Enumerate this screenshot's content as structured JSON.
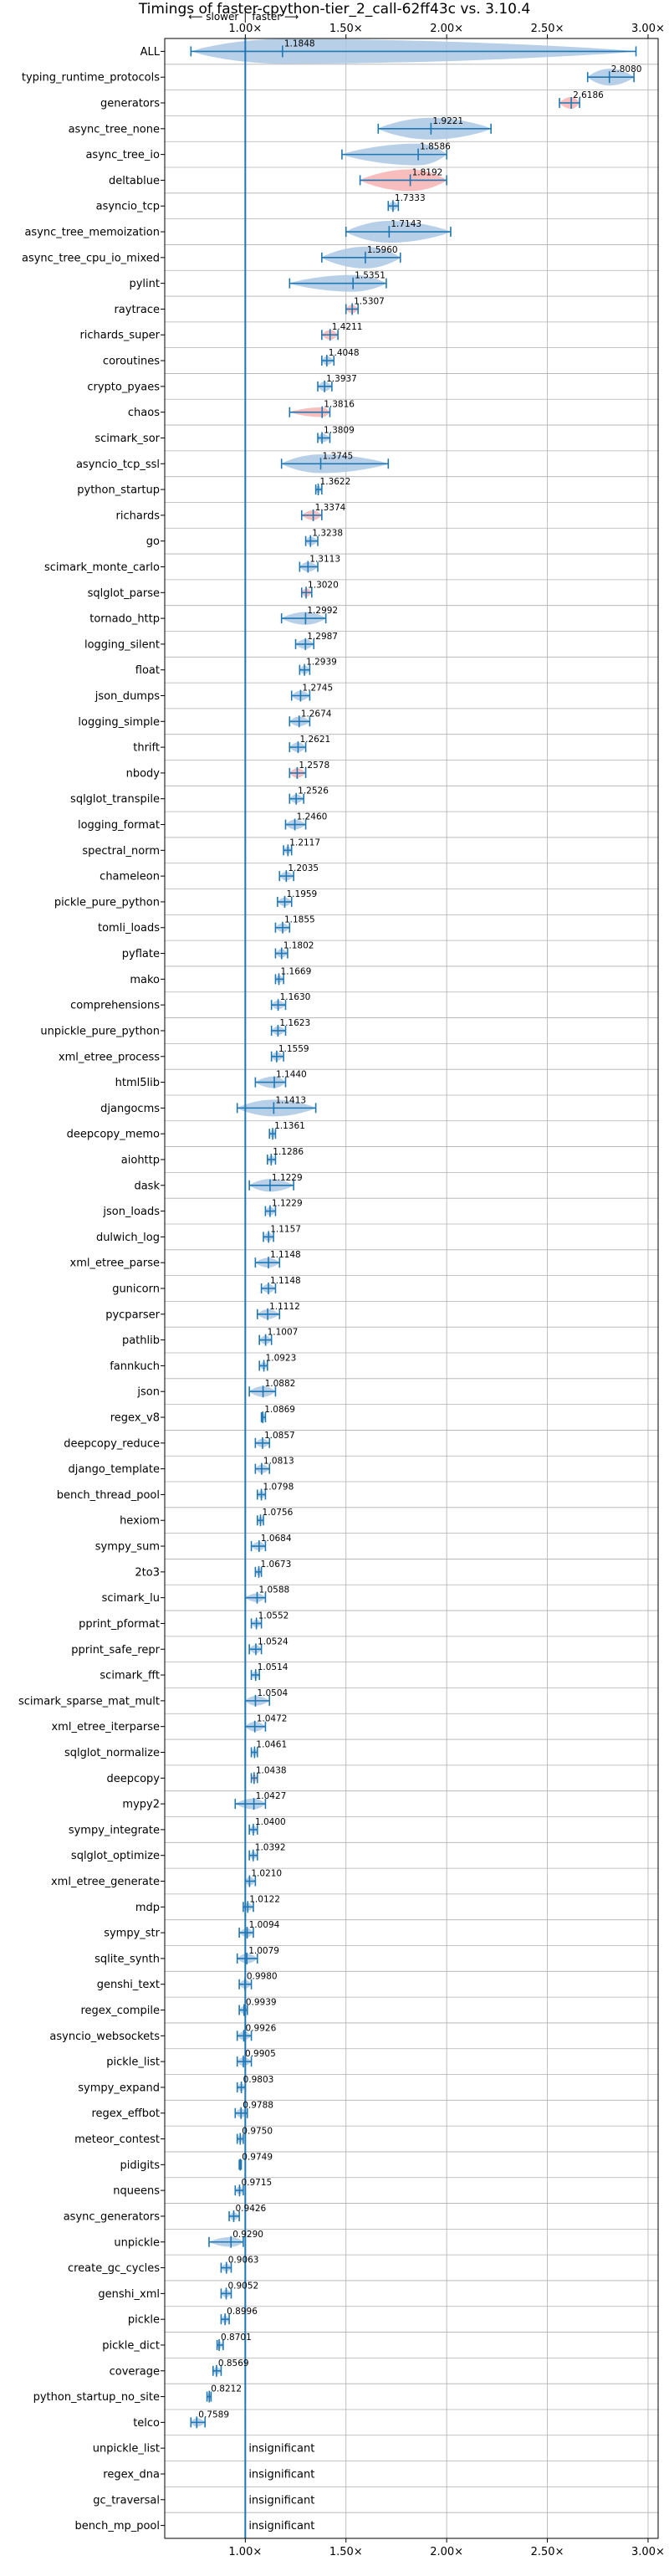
{
  "chart_data": {
    "type": "violin",
    "title": "Timings of faster-cpython-tier_2_call-62ff43c vs. 3.10.4",
    "direction_labels": {
      "slower": "⟵ slower",
      "separator": "|",
      "faster": "faster ⟶"
    },
    "xlim": [
      0.6,
      3.05
    ],
    "xticks": [
      1.0,
      1.5,
      2.0,
      2.5,
      3.0
    ],
    "xtick_labels": [
      "1.00×",
      "1.50×",
      "2.00×",
      "2.50×",
      "3.00×"
    ],
    "reference_line": 1.0,
    "grid": true,
    "colors": {
      "faster": "#1f77b4",
      "slower": "#ff7f7f",
      "violin_faster": "#aac8e4",
      "violin_slower": "#f7b2b2"
    },
    "insignificant_label": "insignificant",
    "benchmarks": [
      {
        "name": "ALL",
        "value": 1.1848,
        "min": 0.73,
        "max": 2.94,
        "spread": 0.4
      },
      {
        "name": "typing_runtime_protocols",
        "value": 2.808,
        "min": 2.7,
        "max": 2.93,
        "spread": 0.1
      },
      {
        "name": "generators",
        "value": 2.6186,
        "min": 2.56,
        "max": 2.66,
        "spread": 0.05,
        "slower": true
      },
      {
        "name": "async_tree_none",
        "value": 1.9221,
        "min": 1.66,
        "max": 2.22,
        "spread": 0.15
      },
      {
        "name": "async_tree_io",
        "value": 1.8586,
        "min": 1.48,
        "max": 2.0,
        "spread": 0.15
      },
      {
        "name": "deltablue",
        "value": 1.8192,
        "min": 1.57,
        "max": 2.0,
        "spread": 0.15,
        "slower": true
      },
      {
        "name": "asyncio_tcp",
        "value": 1.7333,
        "min": 1.71,
        "max": 1.76,
        "spread": 0.02
      },
      {
        "name": "async_tree_memoization",
        "value": 1.7143,
        "min": 1.5,
        "max": 2.02,
        "spread": 0.15
      },
      {
        "name": "async_tree_cpu_io_mixed",
        "value": 1.596,
        "min": 1.38,
        "max": 1.77,
        "spread": 0.15
      },
      {
        "name": "pylint",
        "value": 1.5351,
        "min": 1.22,
        "max": 1.7,
        "spread": 0.1
      },
      {
        "name": "raytrace",
        "value": 1.5307,
        "min": 1.5,
        "max": 1.56,
        "spread": 0.02,
        "slower": true
      },
      {
        "name": "richards_super",
        "value": 1.4211,
        "min": 1.38,
        "max": 1.46,
        "spread": 0.03,
        "slower": true
      },
      {
        "name": "coroutines",
        "value": 1.4048,
        "min": 1.38,
        "max": 1.44,
        "spread": 0.02
      },
      {
        "name": "crypto_pyaes",
        "value": 1.3937,
        "min": 1.36,
        "max": 1.43,
        "spread": 0.03
      },
      {
        "name": "chaos",
        "value": 1.3816,
        "min": 1.22,
        "max": 1.42,
        "spread": 0.03,
        "slower": true
      },
      {
        "name": "scimark_sor",
        "value": 1.3809,
        "min": 1.36,
        "max": 1.42,
        "spread": 0.02
      },
      {
        "name": "asyncio_tcp_ssl",
        "value": 1.3745,
        "min": 1.18,
        "max": 1.71,
        "spread": 0.12
      },
      {
        "name": "python_startup",
        "value": 1.3622,
        "min": 1.35,
        "max": 1.38,
        "spread": 0.01
      },
      {
        "name": "richards",
        "value": 1.3374,
        "min": 1.28,
        "max": 1.38,
        "spread": 0.03,
        "slower": true
      },
      {
        "name": "go",
        "value": 1.3238,
        "min": 1.3,
        "max": 1.36,
        "spread": 0.02
      },
      {
        "name": "scimark_monte_carlo",
        "value": 1.3113,
        "min": 1.27,
        "max": 1.36,
        "spread": 0.03
      },
      {
        "name": "sqlglot_parse",
        "value": 1.302,
        "min": 1.28,
        "max": 1.33,
        "spread": 0.02,
        "slower": true
      },
      {
        "name": "tornado_http",
        "value": 1.2992,
        "min": 1.18,
        "max": 1.4,
        "spread": 0.06
      },
      {
        "name": "logging_silent",
        "value": 1.2987,
        "min": 1.25,
        "max": 1.34,
        "spread": 0.03
      },
      {
        "name": "float",
        "value": 1.2939,
        "min": 1.27,
        "max": 1.32,
        "spread": 0.02
      },
      {
        "name": "json_dumps",
        "value": 1.2745,
        "min": 1.23,
        "max": 1.32,
        "spread": 0.03
      },
      {
        "name": "logging_simple",
        "value": 1.2674,
        "min": 1.22,
        "max": 1.32,
        "spread": 0.03
      },
      {
        "name": "thrift",
        "value": 1.2621,
        "min": 1.22,
        "max": 1.3,
        "spread": 0.03
      },
      {
        "name": "nbody",
        "value": 1.2578,
        "min": 1.22,
        "max": 1.3,
        "spread": 0.03,
        "slower": true
      },
      {
        "name": "sqlglot_transpile",
        "value": 1.2526,
        "min": 1.22,
        "max": 1.29,
        "spread": 0.02
      },
      {
        "name": "logging_format",
        "value": 1.246,
        "min": 1.2,
        "max": 1.3,
        "spread": 0.03
      },
      {
        "name": "spectral_norm",
        "value": 1.2117,
        "min": 1.19,
        "max": 1.23,
        "spread": 0.01
      },
      {
        "name": "chameleon",
        "value": 1.2035,
        "min": 1.17,
        "max": 1.24,
        "spread": 0.02
      },
      {
        "name": "pickle_pure_python",
        "value": 1.1959,
        "min": 1.16,
        "max": 1.23,
        "spread": 0.02
      },
      {
        "name": "tomli_loads",
        "value": 1.1855,
        "min": 1.15,
        "max": 1.22,
        "spread": 0.02
      },
      {
        "name": "pyflate",
        "value": 1.1802,
        "min": 1.15,
        "max": 1.21,
        "spread": 0.02
      },
      {
        "name": "mako",
        "value": 1.1669,
        "min": 1.15,
        "max": 1.19,
        "spread": 0.01
      },
      {
        "name": "comprehensions",
        "value": 1.163,
        "min": 1.13,
        "max": 1.2,
        "spread": 0.02
      },
      {
        "name": "unpickle_pure_python",
        "value": 1.1623,
        "min": 1.13,
        "max": 1.2,
        "spread": 0.02
      },
      {
        "name": "xml_etree_process",
        "value": 1.1559,
        "min": 1.13,
        "max": 1.19,
        "spread": 0.02
      },
      {
        "name": "html5lib",
        "value": 1.144,
        "min": 1.05,
        "max": 1.2,
        "spread": 0.05
      },
      {
        "name": "djangocms",
        "value": 1.1413,
        "min": 0.96,
        "max": 1.35,
        "spread": 0.1
      },
      {
        "name": "deepcopy_memo",
        "value": 1.1361,
        "min": 1.12,
        "max": 1.15,
        "spread": 0.01
      },
      {
        "name": "aiohttp",
        "value": 1.1286,
        "min": 1.11,
        "max": 1.15,
        "spread": 0.01
      },
      {
        "name": "dask",
        "value": 1.1229,
        "min": 1.02,
        "max": 1.24,
        "spread": 0.06
      },
      {
        "name": "json_loads",
        "value": 1.1229,
        "min": 1.1,
        "max": 1.15,
        "spread": 0.02
      },
      {
        "name": "dulwich_log",
        "value": 1.1157,
        "min": 1.09,
        "max": 1.14,
        "spread": 0.02
      },
      {
        "name": "xml_etree_parse",
        "value": 1.1148,
        "min": 1.05,
        "max": 1.17,
        "spread": 0.03
      },
      {
        "name": "gunicorn",
        "value": 1.1148,
        "min": 1.08,
        "max": 1.15,
        "spread": 0.02
      },
      {
        "name": "pycparser",
        "value": 1.1112,
        "min": 1.06,
        "max": 1.17,
        "spread": 0.03
      },
      {
        "name": "pathlib",
        "value": 1.1007,
        "min": 1.07,
        "max": 1.13,
        "spread": 0.02
      },
      {
        "name": "fannkuch",
        "value": 1.0923,
        "min": 1.07,
        "max": 1.11,
        "spread": 0.01
      },
      {
        "name": "json",
        "value": 1.0882,
        "min": 1.02,
        "max": 1.15,
        "spread": 0.04
      },
      {
        "name": "regex_v8",
        "value": 1.0869,
        "min": 1.08,
        "max": 1.1,
        "spread": 0.01
      },
      {
        "name": "deepcopy_reduce",
        "value": 1.0857,
        "min": 1.05,
        "max": 1.12,
        "spread": 0.02
      },
      {
        "name": "django_template",
        "value": 1.0813,
        "min": 1.05,
        "max": 1.12,
        "spread": 0.02
      },
      {
        "name": "bench_thread_pool",
        "value": 1.0798,
        "min": 1.06,
        "max": 1.1,
        "spread": 0.01
      },
      {
        "name": "hexiom",
        "value": 1.0756,
        "min": 1.06,
        "max": 1.09,
        "spread": 0.01
      },
      {
        "name": "sympy_sum",
        "value": 1.0684,
        "min": 1.03,
        "max": 1.1,
        "spread": 0.02
      },
      {
        "name": "2to3",
        "value": 1.0673,
        "min": 1.05,
        "max": 1.08,
        "spread": 0.01
      },
      {
        "name": "scimark_lu",
        "value": 1.0588,
        "min": 1.0,
        "max": 1.1,
        "spread": 0.02
      },
      {
        "name": "pprint_pformat",
        "value": 1.0552,
        "min": 1.03,
        "max": 1.08,
        "spread": 0.01
      },
      {
        "name": "pprint_safe_repr",
        "value": 1.0524,
        "min": 1.02,
        "max": 1.08,
        "spread": 0.02
      },
      {
        "name": "scimark_fft",
        "value": 1.0514,
        "min": 1.03,
        "max": 1.07,
        "spread": 0.01
      },
      {
        "name": "scimark_sparse_mat_mult",
        "value": 1.0504,
        "min": 1.0,
        "max": 1.12,
        "spread": 0.03
      },
      {
        "name": "xml_etree_iterparse",
        "value": 1.0472,
        "min": 1.0,
        "max": 1.1,
        "spread": 0.03
      },
      {
        "name": "sqlglot_normalize",
        "value": 1.0461,
        "min": 1.03,
        "max": 1.06,
        "spread": 0.01
      },
      {
        "name": "deepcopy",
        "value": 1.0438,
        "min": 1.03,
        "max": 1.06,
        "spread": 0.01,
        "slower": true
      },
      {
        "name": "mypy2",
        "value": 1.0427,
        "min": 0.95,
        "max": 1.1,
        "spread": 0.04
      },
      {
        "name": "sympy_integrate",
        "value": 1.04,
        "min": 1.02,
        "max": 1.06,
        "spread": 0.01
      },
      {
        "name": "sqlglot_optimize",
        "value": 1.0392,
        "min": 1.02,
        "max": 1.06,
        "spread": 0.01
      },
      {
        "name": "xml_etree_generate",
        "value": 1.021,
        "min": 1.0,
        "max": 1.05,
        "spread": 0.02
      },
      {
        "name": "mdp",
        "value": 1.0122,
        "min": 0.99,
        "max": 1.04,
        "spread": 0.01
      },
      {
        "name": "sympy_str",
        "value": 1.0094,
        "min": 0.97,
        "max": 1.04,
        "spread": 0.02
      },
      {
        "name": "sqlite_synth",
        "value": 1.0079,
        "min": 0.96,
        "max": 1.06,
        "spread": 0.03
      },
      {
        "name": "genshi_text",
        "value": 0.998,
        "min": 0.97,
        "max": 1.03,
        "spread": 0.02
      },
      {
        "name": "regex_compile",
        "value": 0.9939,
        "min": 0.97,
        "max": 1.01,
        "spread": 0.01
      },
      {
        "name": "asyncio_websockets",
        "value": 0.9926,
        "min": 0.96,
        "max": 1.03,
        "spread": 0.02
      },
      {
        "name": "pickle_list",
        "value": 0.9905,
        "min": 0.96,
        "max": 1.03,
        "spread": 0.02
      },
      {
        "name": "sympy_expand",
        "value": 0.9803,
        "min": 0.96,
        "max": 1.0,
        "spread": 0.01
      },
      {
        "name": "regex_effbot",
        "value": 0.9788,
        "min": 0.95,
        "max": 1.01,
        "spread": 0.02
      },
      {
        "name": "meteor_contest",
        "value": 0.975,
        "min": 0.96,
        "max": 0.99,
        "spread": 0.01
      },
      {
        "name": "pidigits",
        "value": 0.9749,
        "min": 0.97,
        "max": 0.98,
        "spread": 0.005
      },
      {
        "name": "nqueens",
        "value": 0.9715,
        "min": 0.95,
        "max": 0.99,
        "spread": 0.01
      },
      {
        "name": "async_generators",
        "value": 0.9426,
        "min": 0.92,
        "max": 0.97,
        "spread": 0.01
      },
      {
        "name": "unpickle",
        "value": 0.929,
        "min": 0.82,
        "max": 0.99,
        "spread": 0.03
      },
      {
        "name": "create_gc_cycles",
        "value": 0.9063,
        "min": 0.88,
        "max": 0.93,
        "spread": 0.01
      },
      {
        "name": "genshi_xml",
        "value": 0.9052,
        "min": 0.88,
        "max": 0.93,
        "spread": 0.01
      },
      {
        "name": "pickle",
        "value": 0.8996,
        "min": 0.88,
        "max": 0.92,
        "spread": 0.01
      },
      {
        "name": "pickle_dict",
        "value": 0.8701,
        "min": 0.86,
        "max": 0.89,
        "spread": 0.01
      },
      {
        "name": "coverage",
        "value": 0.8569,
        "min": 0.84,
        "max": 0.88,
        "spread": 0.01
      },
      {
        "name": "python_startup_no_site",
        "value": 0.8212,
        "min": 0.81,
        "max": 0.83,
        "spread": 0.005
      },
      {
        "name": "telco",
        "value": 0.7589,
        "min": 0.73,
        "max": 0.8,
        "spread": 0.02
      },
      {
        "name": "unpickle_list",
        "insignificant": true
      },
      {
        "name": "regex_dna",
        "insignificant": true
      },
      {
        "name": "gc_traversal",
        "insignificant": true
      },
      {
        "name": "bench_mp_pool",
        "insignificant": true
      }
    ]
  }
}
